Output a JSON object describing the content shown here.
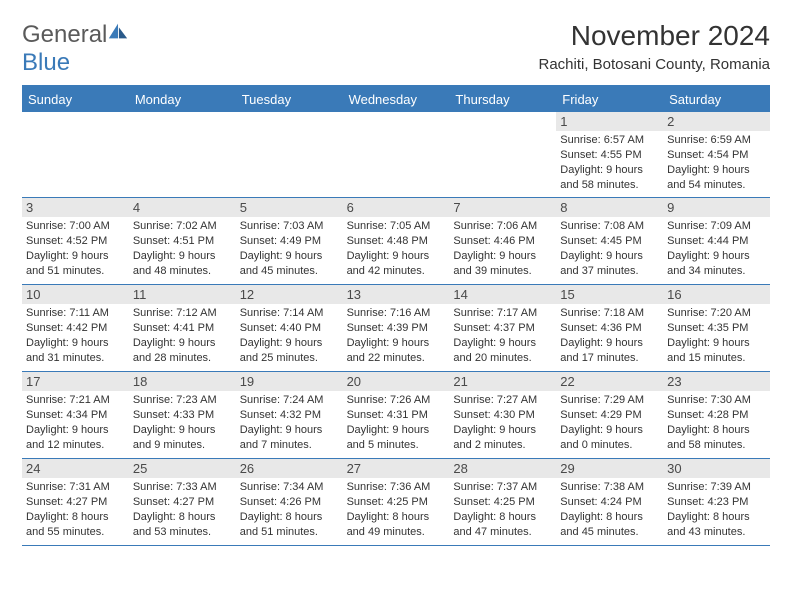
{
  "brand": {
    "name_a": "General",
    "name_b": "Blue"
  },
  "title": "November 2024",
  "location": "Rachiti, Botosani County, Romania",
  "colors": {
    "accent": "#3a7ab8",
    "header_bg": "#3a7ab8",
    "daynum_bg": "#e8e8e8",
    "text": "#333333",
    "page_bg": "#ffffff"
  },
  "day_labels": [
    "Sunday",
    "Monday",
    "Tuesday",
    "Wednesday",
    "Thursday",
    "Friday",
    "Saturday"
  ],
  "weeks": [
    [
      null,
      null,
      null,
      null,
      null,
      {
        "n": "1",
        "sunrise": "6:57 AM",
        "sunset": "4:55 PM",
        "day_h": "9",
        "day_m": "58"
      },
      {
        "n": "2",
        "sunrise": "6:59 AM",
        "sunset": "4:54 PM",
        "day_h": "9",
        "day_m": "54"
      }
    ],
    [
      {
        "n": "3",
        "sunrise": "7:00 AM",
        "sunset": "4:52 PM",
        "day_h": "9",
        "day_m": "51"
      },
      {
        "n": "4",
        "sunrise": "7:02 AM",
        "sunset": "4:51 PM",
        "day_h": "9",
        "day_m": "48"
      },
      {
        "n": "5",
        "sunrise": "7:03 AM",
        "sunset": "4:49 PM",
        "day_h": "9",
        "day_m": "45"
      },
      {
        "n": "6",
        "sunrise": "7:05 AM",
        "sunset": "4:48 PM",
        "day_h": "9",
        "day_m": "42"
      },
      {
        "n": "7",
        "sunrise": "7:06 AM",
        "sunset": "4:46 PM",
        "day_h": "9",
        "day_m": "39"
      },
      {
        "n": "8",
        "sunrise": "7:08 AM",
        "sunset": "4:45 PM",
        "day_h": "9",
        "day_m": "37"
      },
      {
        "n": "9",
        "sunrise": "7:09 AM",
        "sunset": "4:44 PM",
        "day_h": "9",
        "day_m": "34"
      }
    ],
    [
      {
        "n": "10",
        "sunrise": "7:11 AM",
        "sunset": "4:42 PM",
        "day_h": "9",
        "day_m": "31"
      },
      {
        "n": "11",
        "sunrise": "7:12 AM",
        "sunset": "4:41 PM",
        "day_h": "9",
        "day_m": "28"
      },
      {
        "n": "12",
        "sunrise": "7:14 AM",
        "sunset": "4:40 PM",
        "day_h": "9",
        "day_m": "25"
      },
      {
        "n": "13",
        "sunrise": "7:16 AM",
        "sunset": "4:39 PM",
        "day_h": "9",
        "day_m": "22"
      },
      {
        "n": "14",
        "sunrise": "7:17 AM",
        "sunset": "4:37 PM",
        "day_h": "9",
        "day_m": "20"
      },
      {
        "n": "15",
        "sunrise": "7:18 AM",
        "sunset": "4:36 PM",
        "day_h": "9",
        "day_m": "17"
      },
      {
        "n": "16",
        "sunrise": "7:20 AM",
        "sunset": "4:35 PM",
        "day_h": "9",
        "day_m": "15"
      }
    ],
    [
      {
        "n": "17",
        "sunrise": "7:21 AM",
        "sunset": "4:34 PM",
        "day_h": "9",
        "day_m": "12"
      },
      {
        "n": "18",
        "sunrise": "7:23 AM",
        "sunset": "4:33 PM",
        "day_h": "9",
        "day_m": "9"
      },
      {
        "n": "19",
        "sunrise": "7:24 AM",
        "sunset": "4:32 PM",
        "day_h": "9",
        "day_m": "7"
      },
      {
        "n": "20",
        "sunrise": "7:26 AM",
        "sunset": "4:31 PM",
        "day_h": "9",
        "day_m": "5"
      },
      {
        "n": "21",
        "sunrise": "7:27 AM",
        "sunset": "4:30 PM",
        "day_h": "9",
        "day_m": "2"
      },
      {
        "n": "22",
        "sunrise": "7:29 AM",
        "sunset": "4:29 PM",
        "day_h": "9",
        "day_m": "0"
      },
      {
        "n": "23",
        "sunrise": "7:30 AM",
        "sunset": "4:28 PM",
        "day_h": "8",
        "day_m": "58"
      }
    ],
    [
      {
        "n": "24",
        "sunrise": "7:31 AM",
        "sunset": "4:27 PM",
        "day_h": "8",
        "day_m": "55"
      },
      {
        "n": "25",
        "sunrise": "7:33 AM",
        "sunset": "4:27 PM",
        "day_h": "8",
        "day_m": "53"
      },
      {
        "n": "26",
        "sunrise": "7:34 AM",
        "sunset": "4:26 PM",
        "day_h": "8",
        "day_m": "51"
      },
      {
        "n": "27",
        "sunrise": "7:36 AM",
        "sunset": "4:25 PM",
        "day_h": "8",
        "day_m": "49"
      },
      {
        "n": "28",
        "sunrise": "7:37 AM",
        "sunset": "4:25 PM",
        "day_h": "8",
        "day_m": "47"
      },
      {
        "n": "29",
        "sunrise": "7:38 AM",
        "sunset": "4:24 PM",
        "day_h": "8",
        "day_m": "45"
      },
      {
        "n": "30",
        "sunrise": "7:39 AM",
        "sunset": "4:23 PM",
        "day_h": "8",
        "day_m": "43"
      }
    ]
  ],
  "labels": {
    "sunrise": "Sunrise:",
    "sunset": "Sunset:",
    "daylight_a": "Daylight:",
    "daylight_b": "hours",
    "daylight_c": "and",
    "daylight_d": "minutes."
  }
}
